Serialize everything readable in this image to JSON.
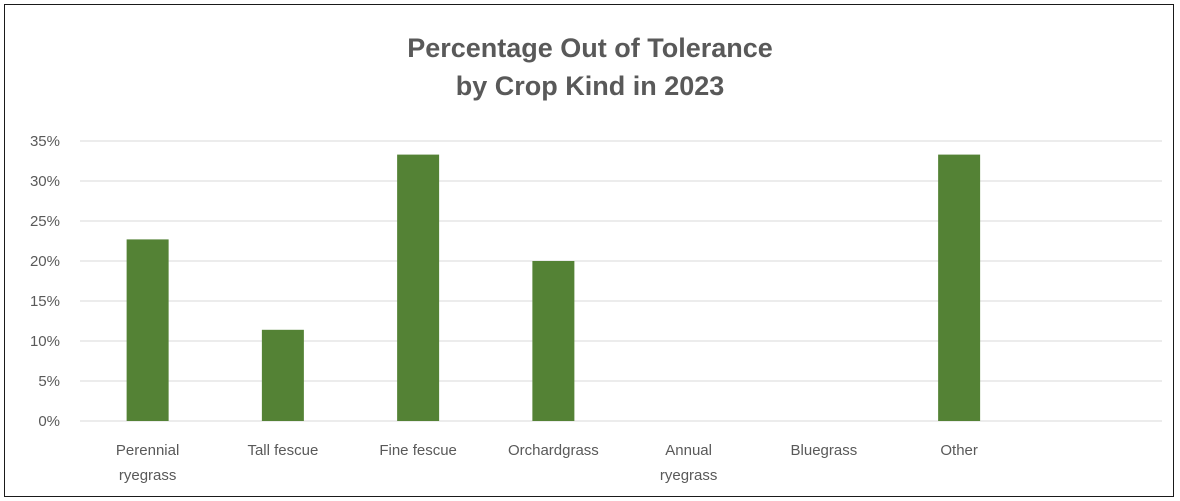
{
  "chart_data": {
    "type": "bar",
    "title_lines": [
      "Percentage Out of Tolerance",
      "by Crop Kind in 2023"
    ],
    "categories": [
      [
        "Perennial",
        "ryegrass"
      ],
      [
        "Tall fescue"
      ],
      [
        "Fine fescue"
      ],
      [
        "Orchardgrass"
      ],
      [
        "Annual",
        "ryegrass"
      ],
      [
        "Bluegrass"
      ],
      [
        "Other"
      ],
      [
        ""
      ]
    ],
    "values": [
      22.7,
      11.4,
      33.3,
      20.0,
      0,
      0,
      33.3,
      0
    ],
    "ylim": [
      0,
      35
    ],
    "yticks": [
      0,
      5,
      10,
      15,
      20,
      25,
      30,
      35
    ],
    "ytick_labels": [
      "0%",
      "5%",
      "10%",
      "15%",
      "20%",
      "25%",
      "30%",
      "35%"
    ],
    "grid": true,
    "bar_color": "#548235",
    "xlabel": "",
    "ylabel": ""
  }
}
